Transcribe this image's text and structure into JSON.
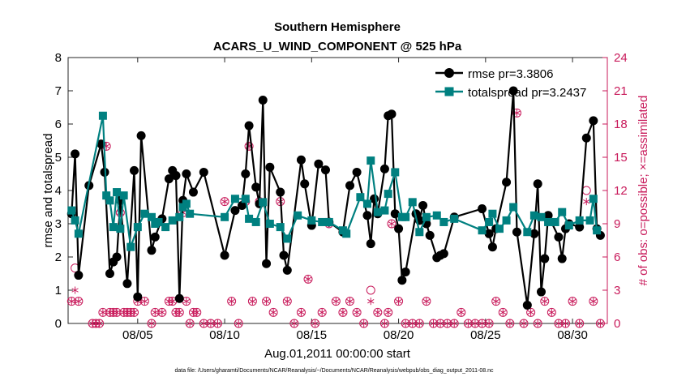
{
  "chart_data": {
    "type": "line",
    "title_line1": "Southern Hemisphere",
    "title_line2": "ACARS_U_WIND_COMPONENT @ 525 hPa",
    "xlabel": "Aug.01,2011 00:00:00 start",
    "ylabel_left": "rmse and totalspread",
    "ylabel_right": "# of obs: o=possible; ×=assimilated",
    "footnote": "data file: /Users/gharamti/Documents/NCAR/Reanalysis/~/Documents/NCAR/Reanalysis/webpub/obs_diag_output_2011-08.nc",
    "xlim": [
      1,
      32
    ],
    "ylim_left": [
      0,
      8
    ],
    "ylim_right": [
      0,
      24
    ],
    "x_ticks": [
      5,
      10,
      15,
      20,
      25,
      30
    ],
    "x_tick_labels": [
      "08/05",
      "08/10",
      "08/15",
      "08/20",
      "08/25",
      "08/30"
    ],
    "y_left_ticks": [
      "0",
      "1",
      "2",
      "3",
      "4",
      "5",
      "6",
      "7",
      "8"
    ],
    "y_right_ticks": [
      "0",
      "3",
      "6",
      "9",
      "12",
      "15",
      "18",
      "21",
      "24"
    ],
    "series": [
      {
        "name": "rmse",
        "legend": "rmse pr=3.3806",
        "color": "#000000",
        "marker": "circle",
        "x": [
          1.2,
          1.4,
          1.6,
          2.2,
          2.9,
          3.1,
          3.4,
          3.6,
          3.8,
          4.0,
          4.4,
          4.8,
          5.0,
          5.2,
          5.8,
          6.0,
          6.4,
          6.8,
          7.0,
          7.2,
          7.4,
          7.6,
          7.8,
          8.2,
          8.8,
          10.0,
          10.6,
          11.0,
          11.2,
          11.4,
          11.8,
          12.0,
          12.2,
          12.4,
          12.6,
          13.2,
          13.4,
          13.6,
          14.4,
          14.6,
          15.0,
          15.4,
          15.8,
          16.0,
          16.8,
          17.2,
          17.6,
          18.2,
          18.4,
          18.6,
          18.8,
          19.2,
          19.4,
          19.6,
          19.8,
          20.0,
          20.2,
          20.4,
          21.0,
          21.2,
          21.4,
          21.6,
          21.8,
          22.2,
          22.4,
          22.6,
          23.2,
          24.8,
          25.2,
          25.4,
          25.6,
          26.2,
          26.6,
          26.8,
          27.4,
          27.8,
          28.0,
          28.2,
          28.4,
          28.6,
          29.2,
          29.4,
          29.6,
          29.8,
          30.4,
          30.8,
          31.2,
          31.4,
          31.6
        ],
        "y": [
          3.3,
          5.1,
          1.45,
          4.15,
          5.4,
          4.55,
          1.5,
          1.85,
          2.0,
          3.7,
          1.2,
          4.6,
          0.8,
          5.65,
          2.2,
          2.6,
          3.15,
          4.35,
          4.6,
          4.45,
          0.75,
          3.7,
          4.5,
          3.95,
          4.55,
          2.05,
          3.4,
          3.55,
          4.5,
          5.95,
          4.1,
          3.6,
          6.72,
          1.8,
          4.7,
          3.95,
          2.05,
          1.6,
          4.92,
          4.2,
          2.95,
          4.8,
          4.62,
          3.05,
          2.75,
          4.15,
          4.55,
          3.25,
          2.4,
          3.75,
          3.3,
          4.65,
          6.25,
          6.3,
          3.3,
          2.85,
          1.3,
          1.55,
          3.3,
          3.1,
          3.55,
          3.0,
          2.65,
          1.98,
          2.05,
          2.1,
          3.2,
          3.45,
          2.7,
          2.3,
          2.85,
          4.25,
          7.0,
          2.75,
          0.55,
          2.7,
          4.2,
          0.95,
          1.95,
          3.25,
          2.6,
          1.95,
          2.85,
          3.0,
          2.9,
          5.58,
          6.1,
          2.85,
          2.65
        ]
      },
      {
        "name": "totalspread",
        "legend": "totalspread pr=3.2437",
        "color": "#008080",
        "marker": "square",
        "x": [
          1.2,
          1.4,
          1.6,
          3.0,
          3.2,
          3.4,
          3.6,
          3.8,
          4.0,
          4.2,
          4.6,
          5.0,
          5.4,
          5.8,
          6.0,
          6.2,
          6.6,
          7.0,
          7.4,
          7.6,
          7.8,
          8.0,
          10.0,
          10.6,
          11.2,
          11.4,
          11.8,
          12.2,
          12.6,
          13.2,
          13.6,
          14.2,
          15.0,
          15.6,
          16.0,
          16.8,
          17.0,
          17.8,
          18.2,
          18.4,
          18.8,
          19.2,
          19.4,
          19.8,
          20.2,
          20.4,
          20.8,
          21.2,
          21.6,
          22.2,
          22.6,
          23.2,
          24.8,
          25.2,
          25.4,
          25.8,
          26.2,
          26.6,
          27.4,
          27.8,
          28.2,
          28.6,
          29.0,
          29.4,
          29.8,
          30.4,
          31.0,
          31.2,
          31.4
        ],
        "y": [
          3.4,
          3.1,
          2.7,
          6.25,
          3.85,
          3.7,
          2.9,
          3.95,
          2.85,
          3.85,
          2.3,
          2.9,
          3.3,
          3.2,
          3.0,
          3.05,
          2.9,
          3.1,
          3.2,
          3.5,
          3.6,
          3.3,
          3.2,
          3.75,
          3.75,
          3.15,
          3.05,
          3.65,
          3.0,
          2.9,
          2.55,
          3.25,
          3.1,
          3.05,
          3.05,
          2.8,
          2.7,
          3.8,
          3.6,
          4.9,
          3.35,
          3.4,
          3.9,
          4.55,
          3.2,
          3.2,
          3.65,
          2.75,
          3.2,
          3.25,
          3.05,
          3.15,
          2.8,
          3.05,
          3.3,
          2.85,
          3.1,
          3.5,
          2.75,
          3.25,
          3.2,
          3.05,
          3.05,
          3.35,
          2.95,
          3.1,
          3.1,
          3.75,
          2.8
        ]
      }
    ],
    "obs_possible_x": [
      1.2,
      1.4,
      1.6,
      2.4,
      2.6,
      2.8,
      3.0,
      3.2,
      3.4,
      3.6,
      3.8,
      4.0,
      4.2,
      4.4,
      4.6,
      4.8,
      5.0,
      5.4,
      5.8,
      6.0,
      6.4,
      6.8,
      7.0,
      7.2,
      7.4,
      7.6,
      7.8,
      8.0,
      8.2,
      8.4,
      8.8,
      9.2,
      9.6,
      10.0,
      10.4,
      10.8,
      11.2,
      11.4,
      11.6,
      12.0,
      12.4,
      12.8,
      13.2,
      13.6,
      14.0,
      14.4,
      14.8,
      15.2,
      15.6,
      16.0,
      16.4,
      16.8,
      17.2,
      17.6,
      18.0,
      18.4,
      18.8,
      19.2,
      19.4,
      19.6,
      20.0,
      20.4,
      20.8,
      21.2,
      21.6,
      22.0,
      22.4,
      22.8,
      23.2,
      23.6,
      24.0,
      24.4,
      24.8,
      25.2,
      25.6,
      26.0,
      26.4,
      26.8,
      27.2,
      27.6,
      28.0,
      28.4,
      28.8,
      29.2,
      29.6,
      30.0,
      30.4,
      30.8,
      31.2,
      31.6
    ],
    "obs_possible_y": [
      2,
      5,
      2,
      0,
      0,
      0,
      1,
      16,
      1,
      1,
      1,
      10,
      1,
      1,
      1,
      1,
      2,
      2,
      0,
      1,
      1,
      2,
      2,
      1,
      1,
      10,
      2,
      0,
      1,
      1,
      0,
      0,
      0,
      11,
      2,
      0,
      11,
      16,
      2,
      11,
      2,
      1,
      11,
      2,
      0,
      1,
      4,
      0,
      1,
      9,
      2,
      1,
      2,
      1,
      0,
      3,
      1,
      0,
      1,
      9,
      2,
      0,
      0,
      0,
      2,
      0,
      0,
      0,
      0,
      1,
      0,
      0,
      0,
      0,
      2,
      1,
      0,
      19,
      0,
      1,
      0,
      2,
      1,
      0,
      0,
      2,
      0,
      12,
      2,
      0
    ],
    "obs_assim_x": [
      1.2,
      1.4,
      1.6,
      2.4,
      2.6,
      2.8,
      3.0,
      3.2,
      3.4,
      3.6,
      3.8,
      4.0,
      4.2,
      4.4,
      4.6,
      4.8,
      5.0,
      5.4,
      5.8,
      6.0,
      6.4,
      6.8,
      7.0,
      7.2,
      7.4,
      7.6,
      7.8,
      8.0,
      8.2,
      8.4,
      8.8,
      9.2,
      9.6,
      10.0,
      10.4,
      10.8,
      11.2,
      11.4,
      11.6,
      12.0,
      12.4,
      12.8,
      13.2,
      13.6,
      14.0,
      14.4,
      14.8,
      15.2,
      15.6,
      16.0,
      16.4,
      16.8,
      17.2,
      17.6,
      18.0,
      18.4,
      18.8,
      19.2,
      19.4,
      19.6,
      20.0,
      20.4,
      20.8,
      21.2,
      21.6,
      22.0,
      22.4,
      22.8,
      23.2,
      23.6,
      24.0,
      24.4,
      24.8,
      25.2,
      25.6,
      26.0,
      26.4,
      26.8,
      27.2,
      27.6,
      28.0,
      28.4,
      28.8,
      29.2,
      29.6,
      30.0,
      30.4,
      30.8,
      31.2,
      31.6
    ],
    "obs_assim_y": [
      2,
      3,
      2,
      0,
      0,
      0,
      1,
      16,
      1,
      1,
      1,
      10,
      1,
      1,
      1,
      1,
      2,
      2,
      0,
      1,
      1,
      2,
      2,
      1,
      1,
      10,
      2,
      0,
      1,
      1,
      0,
      0,
      0,
      11,
      2,
      0,
      11,
      16,
      2,
      11,
      2,
      1,
      11,
      2,
      0,
      1,
      4,
      0,
      1,
      9,
      2,
      1,
      2,
      1,
      0,
      2,
      1,
      0,
      1,
      9,
      2,
      0,
      0,
      0,
      2,
      0,
      0,
      0,
      0,
      1,
      0,
      0,
      0,
      0,
      2,
      1,
      0,
      19,
      0,
      1,
      0,
      2,
      1,
      0,
      0,
      2,
      0,
      11,
      2,
      0
    ]
  }
}
